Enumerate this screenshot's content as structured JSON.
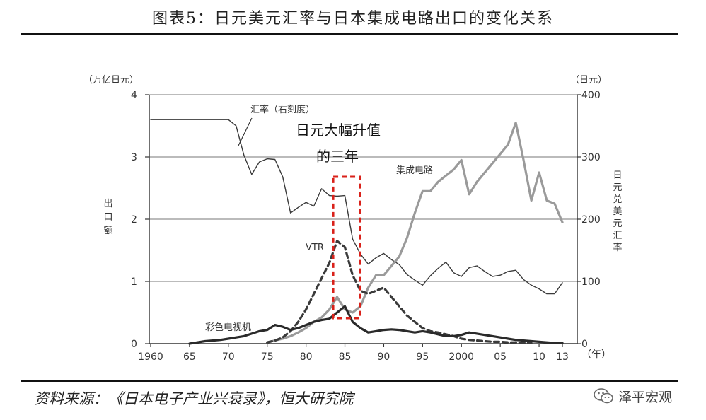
{
  "figure_title": "图表5：日元美元汇率与日本集成电路出口的变化关系",
  "source": "资料来源：《日本电子产业兴衰录》，恒大研究院",
  "watermark": {
    "text": "泽平宏观",
    "icon": "wechat-icon"
  },
  "chart_data": {
    "type": "line",
    "title": "",
    "left_axis": {
      "unit": "（万亿日元）",
      "label": "出口额",
      "ylim": [
        0,
        4
      ],
      "ticks": [
        "0",
        "1",
        "2",
        "3",
        "4"
      ]
    },
    "right_axis": {
      "unit": "（日元）",
      "label": "日元兑美元汇率",
      "ylim": [
        0,
        400
      ],
      "ticks": [
        "0",
        "100",
        "200",
        "300",
        "400"
      ]
    },
    "x_axis": {
      "unit": "（年）",
      "range": [
        1960,
        2013
      ],
      "ticks": [
        {
          "year": 1960,
          "label": "1960"
        },
        {
          "year": 1965,
          "label": "65"
        },
        {
          "year": 1970,
          "label": "70"
        },
        {
          "year": 1975,
          "label": "75"
        },
        {
          "year": 1980,
          "label": "80"
        },
        {
          "year": 1985,
          "label": "85"
        },
        {
          "year": 1990,
          "label": "90"
        },
        {
          "year": 1995,
          "label": "95"
        },
        {
          "year": 2000,
          "label": "2000"
        },
        {
          "year": 2005,
          "label": "05"
        },
        {
          "year": 2010,
          "label": "10"
        },
        {
          "year": 2013,
          "label": "13"
        }
      ]
    },
    "gridlines": "horizontal",
    "series": [
      {
        "name": "汇率（右刻度）",
        "axis": "right",
        "color": "#3a3a3a",
        "style": "thin-solid",
        "x": [
          1960,
          1961,
          1962,
          1963,
          1964,
          1965,
          1966,
          1967,
          1968,
          1969,
          1970,
          1971,
          1972,
          1973,
          1974,
          1975,
          1976,
          1977,
          1978,
          1979,
          1980,
          1981,
          1982,
          1983,
          1984,
          1985,
          1986,
          1987,
          1988,
          1989,
          1990,
          1991,
          1992,
          1993,
          1994,
          1995,
          1996,
          1997,
          1998,
          1999,
          2000,
          2001,
          2002,
          2003,
          2004,
          2005,
          2006,
          2007,
          2008,
          2009,
          2010,
          2011,
          2012,
          2013
        ],
        "values": [
          360,
          360,
          360,
          360,
          360,
          360,
          360,
          360,
          360,
          360,
          360,
          350,
          303,
          272,
          292,
          297,
          296,
          268,
          210,
          219,
          227,
          221,
          249,
          238,
          237,
          238,
          168,
          144,
          128,
          138,
          145,
          135,
          127,
          111,
          102,
          94,
          109,
          121,
          131,
          114,
          108,
          122,
          125,
          116,
          108,
          110,
          116,
          118,
          103,
          94,
          88,
          80,
          80,
          98
        ]
      },
      {
        "name": "集成电路",
        "axis": "left",
        "color": "#9a9a9a",
        "style": "thick-solid",
        "x": [
          1975,
          1976,
          1977,
          1978,
          1979,
          1980,
          1981,
          1982,
          1983,
          1984,
          1985,
          1986,
          1987,
          1988,
          1989,
          1990,
          1991,
          1992,
          1993,
          1994,
          1995,
          1996,
          1997,
          1998,
          1999,
          2000,
          2001,
          2002,
          2003,
          2004,
          2005,
          2006,
          2007,
          2008,
          2009,
          2010,
          2011,
          2012,
          2013
        ],
        "values": [
          0.02,
          0.05,
          0.08,
          0.12,
          0.18,
          0.25,
          0.35,
          0.42,
          0.55,
          0.75,
          0.55,
          0.5,
          0.6,
          0.9,
          1.1,
          1.1,
          1.25,
          1.4,
          1.7,
          2.1,
          2.45,
          2.45,
          2.6,
          2.7,
          2.8,
          2.95,
          2.4,
          2.6,
          2.75,
          2.9,
          3.05,
          3.2,
          3.55,
          2.95,
          2.3,
          2.75,
          2.3,
          2.25,
          1.95
        ]
      },
      {
        "name": "VTR",
        "axis": "left",
        "color": "#3a3a3a",
        "style": "thick-dashed",
        "x": [
          1975,
          1976,
          1977,
          1978,
          1979,
          1980,
          1981,
          1982,
          1983,
          1984,
          1985,
          1986,
          1987,
          1988,
          1989,
          1990,
          1991,
          1992,
          1993,
          1994,
          1995,
          1996,
          1997,
          1998,
          1999,
          2000,
          2001,
          2002,
          2003,
          2004,
          2005,
          2006,
          2007,
          2008,
          2009
        ],
        "values": [
          0.02,
          0.05,
          0.1,
          0.2,
          0.35,
          0.55,
          0.8,
          1.05,
          1.3,
          1.65,
          1.55,
          1.1,
          0.85,
          0.8,
          0.85,
          0.9,
          0.75,
          0.6,
          0.45,
          0.35,
          0.25,
          0.2,
          0.18,
          0.15,
          0.12,
          0.08,
          0.06,
          0.05,
          0.04,
          0.03,
          0.03,
          0.02,
          0.02,
          0.01,
          0.01
        ]
      },
      {
        "name": "彩色电视机",
        "axis": "left",
        "color": "#2a2a2a",
        "style": "thick-solid",
        "x": [
          1965,
          1966,
          1967,
          1968,
          1969,
          1970,
          1971,
          1972,
          1973,
          1974,
          1975,
          1976,
          1977,
          1978,
          1979,
          1980,
          1981,
          1982,
          1983,
          1984,
          1985,
          1986,
          1987,
          1988,
          1989,
          1990,
          1991,
          1992,
          1993,
          1994,
          1995,
          1996,
          1997,
          1998,
          1999,
          2000,
          2001,
          2002,
          2003,
          2004,
          2005,
          2006,
          2007,
          2008,
          2009,
          2010,
          2011,
          2012,
          2013
        ],
        "values": [
          0.0,
          0.02,
          0.04,
          0.05,
          0.06,
          0.08,
          0.1,
          0.12,
          0.16,
          0.2,
          0.22,
          0.3,
          0.27,
          0.22,
          0.25,
          0.3,
          0.35,
          0.38,
          0.4,
          0.5,
          0.6,
          0.35,
          0.25,
          0.18,
          0.2,
          0.22,
          0.23,
          0.22,
          0.2,
          0.18,
          0.2,
          0.18,
          0.15,
          0.12,
          0.12,
          0.14,
          0.18,
          0.16,
          0.14,
          0.12,
          0.1,
          0.08,
          0.06,
          0.05,
          0.04,
          0.03,
          0.02,
          0.01,
          0.01
        ]
      }
    ],
    "annotations": [
      {
        "text": "汇率（右刻度）",
        "series": "汇率（右刻度）"
      },
      {
        "text": "集成电路",
        "series": "集成电路"
      },
      {
        "text": "VTR",
        "series": "VTR"
      },
      {
        "text": "彩色电视机",
        "series": "彩色电视机"
      },
      {
        "text_lines": [
          "日元大幅升值",
          "的三年"
        ],
        "highlight_years": [
          1983.5,
          1987
        ],
        "box_color": "#d9211a",
        "box_style": "dashed"
      }
    ]
  }
}
